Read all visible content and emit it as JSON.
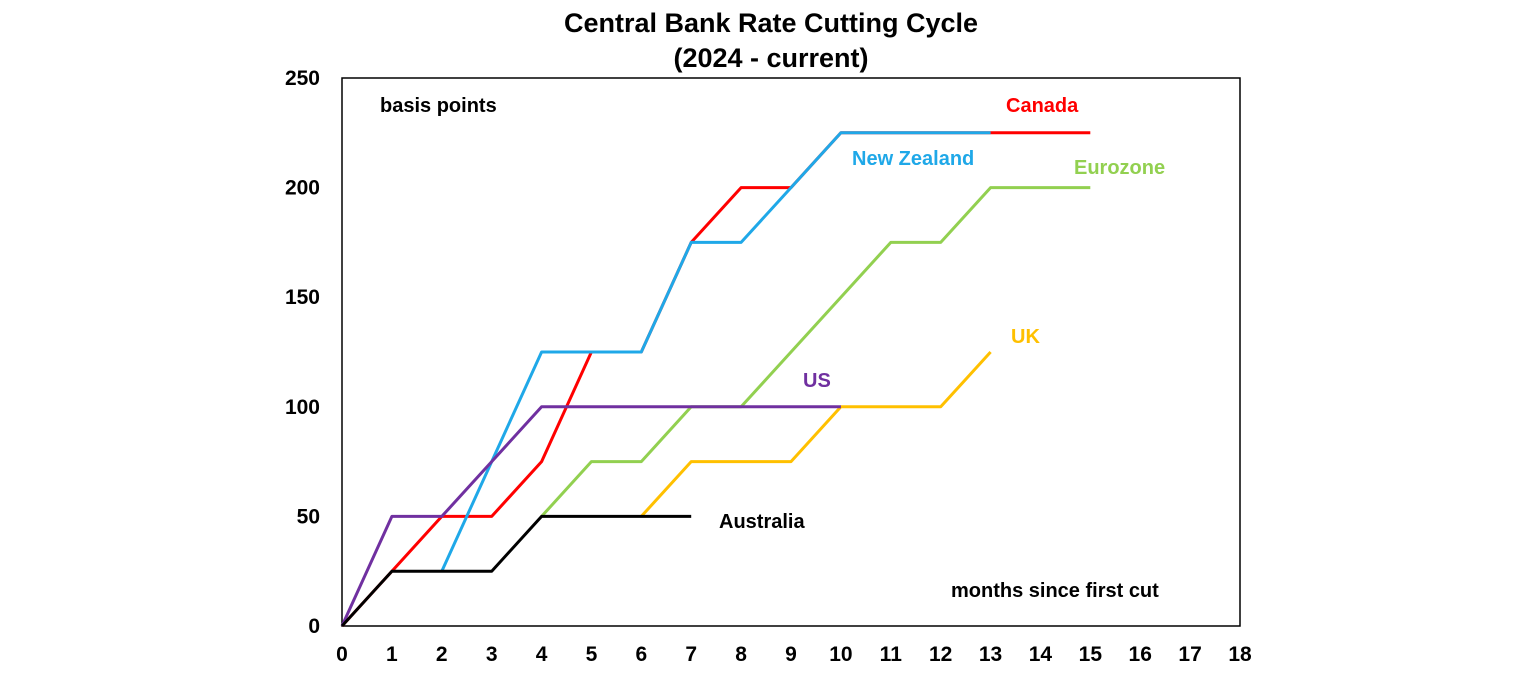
{
  "chart_data": {
    "type": "line",
    "title": "Central Bank Rate Cutting Cycle",
    "subtitle": "(2024 - current)",
    "ylabel_annotation": "basis points",
    "xlabel_annotation": "months since first cut",
    "xlim": [
      0,
      18
    ],
    "ylim": [
      0,
      250
    ],
    "x_ticks": [
      "0",
      "1",
      "2",
      "3",
      "4",
      "5",
      "6",
      "7",
      "8",
      "9",
      "10",
      "11",
      "12",
      "13",
      "14",
      "15",
      "16",
      "17",
      "18"
    ],
    "y_ticks": [
      "0",
      "50",
      "100",
      "150",
      "200",
      "250"
    ],
    "grid": false,
    "legend": "inline labels",
    "series": [
      {
        "name": "Eurozone",
        "color": "#92D050",
        "x": [
          4,
          5,
          6,
          7,
          8,
          9,
          10,
          11,
          12,
          13,
          14,
          15
        ],
        "y": [
          50,
          75,
          75,
          100,
          100,
          125,
          150,
          175,
          175,
          200,
          200,
          200
        ]
      },
      {
        "name": "UK",
        "color": "#FFC000",
        "x": [
          6,
          7,
          8,
          9,
          10,
          11,
          12,
          13
        ],
        "y": [
          50,
          75,
          75,
          75,
          100,
          100,
          100,
          125
        ]
      },
      {
        "name": "Canada",
        "color": "#FF0000",
        "x": [
          0,
          1,
          2,
          3,
          4,
          5,
          6,
          7,
          8,
          9,
          10,
          11,
          12,
          13,
          14,
          15
        ],
        "y": [
          0,
          25,
          50,
          50,
          75,
          125,
          125,
          175,
          200,
          200,
          225,
          225,
          225,
          225,
          225,
          225
        ]
      },
      {
        "name": "New Zealand",
        "color": "#1FA8E8",
        "x": [
          2,
          3,
          4,
          5,
          6,
          7,
          8,
          9,
          10,
          11,
          12,
          13
        ],
        "y": [
          25,
          75,
          125,
          125,
          125,
          175,
          175,
          200,
          225,
          225,
          225,
          225
        ]
      },
      {
        "name": "US",
        "color": "#7030A0",
        "x": [
          0,
          1,
          2,
          3,
          4,
          5,
          6,
          7,
          8,
          9,
          10
        ],
        "y": [
          0,
          50,
          50,
          75,
          100,
          100,
          100,
          100,
          100,
          100,
          100
        ]
      },
      {
        "name": "Australia",
        "color": "#000000",
        "x": [
          0,
          1,
          2,
          3,
          4,
          5,
          6,
          7
        ],
        "y": [
          0,
          25,
          25,
          25,
          50,
          50,
          50,
          50
        ]
      }
    ],
    "labels": {
      "canada": "Canada",
      "new_zealand": "New Zealand",
      "eurozone": "Eurozone",
      "uk": "UK",
      "us": "US",
      "australia": "Australia"
    },
    "label_colors": {
      "canada": "#FF0000",
      "new_zealand": "#1FA8E8",
      "eurozone": "#92D050",
      "uk": "#FFC000",
      "us": "#7030A0",
      "australia": "#000000"
    }
  }
}
